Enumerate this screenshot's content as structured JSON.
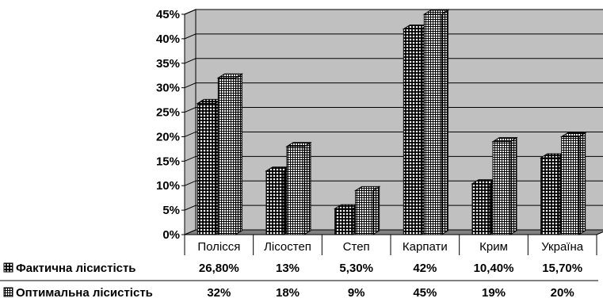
{
  "chart_data": {
    "type": "bar",
    "subtype": "3d-clustered-column-with-data-table",
    "categories": [
      "Полісся",
      "Лісостеп",
      "Степ",
      "Карпати",
      "Крим",
      "Україна"
    ],
    "series": [
      {
        "name": "Фактична лісистість",
        "values": [
          26.8,
          13,
          5.3,
          42,
          10.4,
          15.7
        ],
        "labels": [
          "26,80%",
          "13%",
          "5,30%",
          "42%",
          "10,40%",
          "15,70%"
        ],
        "pattern": "dots"
      },
      {
        "name": "Оптимальна лісистість",
        "values": [
          32,
          18,
          9,
          45,
          19,
          20
        ],
        "labels": [
          "32%",
          "18%",
          "9%",
          "45%",
          "19%",
          "20%"
        ],
        "pattern": "grid"
      }
    ],
    "ylim": [
      0,
      45
    ],
    "yticks": [
      "0%",
      "5%",
      "10%",
      "15%",
      "20%",
      "25%",
      "30%",
      "35%",
      "40%",
      "45%"
    ],
    "grid": true,
    "legend": "data-table-left"
  },
  "colors": {
    "wall": "#c0c0c0",
    "floor": "#808080",
    "grid": "#000000",
    "bar_fill": "#ffffff",
    "bar_pattern": "#000000"
  }
}
